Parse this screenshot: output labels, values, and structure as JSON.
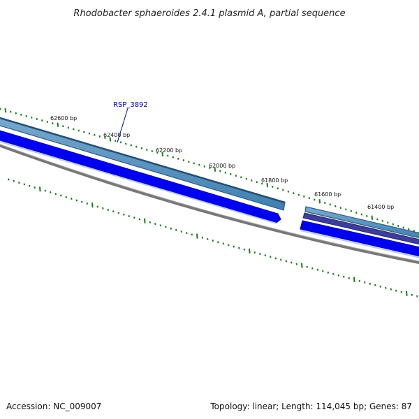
{
  "title": "Rhodobacter sphaeroides 2.4.1 plasmid A, partial sequence",
  "tick_labels": [
    "62600 bp",
    "62400 bp",
    "62200 bp",
    "62000 bp",
    "61800 bp",
    "61600 bp",
    "61400 bp"
  ],
  "gene_label": "RSP_3892",
  "footer": {
    "accession": "Accession: NC_009007",
    "summary": "Topology: linear; Length: 114,045 bp; Genes: 87"
  },
  "colors": {
    "cds_outer": "#4a88b8",
    "cds_outer_dark": "#2d5f86",
    "gene_strand": "#0000ee",
    "gene_alt": "#3a3a9e",
    "backbone": "#777777",
    "ticks": "#1a7a1a"
  }
}
